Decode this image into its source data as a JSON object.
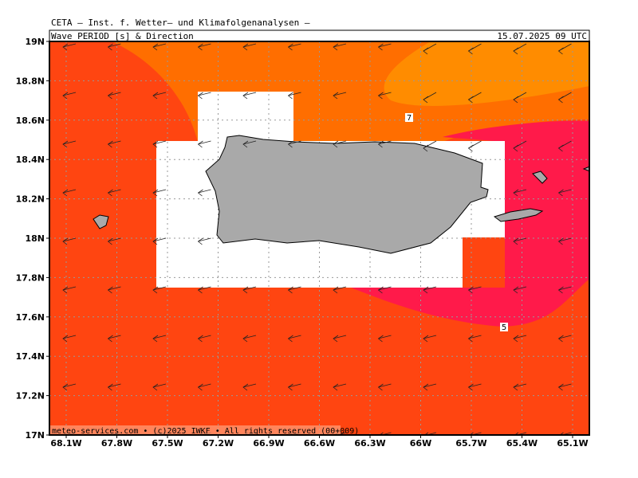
{
  "header": {
    "title": "CETA – Inst. f. Wetter– und Klimafolgenanalysen –",
    "parameter": "Wave PERIOD [s] & Direction",
    "datetime": "15.07.2025 09 UTC"
  },
  "map": {
    "lat_labels": [
      "19N",
      "18.8N",
      "18.6N",
      "18.4N",
      "18.2N",
      "18N",
      "17.8N",
      "17.6N",
      "17.4N",
      "17.2N",
      "17N"
    ],
    "lon_labels": [
      "68.1W",
      "67.8W",
      "67.5W",
      "67.2W",
      "66.9W",
      "66.6W",
      "66.3W",
      "66W",
      "65.7W",
      "65.4W",
      "65.1W"
    ],
    "contour_labels": [
      "7",
      "5"
    ]
  },
  "footer": "meteo-services.com • (c)2025 IWKF • All rights reserved (00+009)"
}
